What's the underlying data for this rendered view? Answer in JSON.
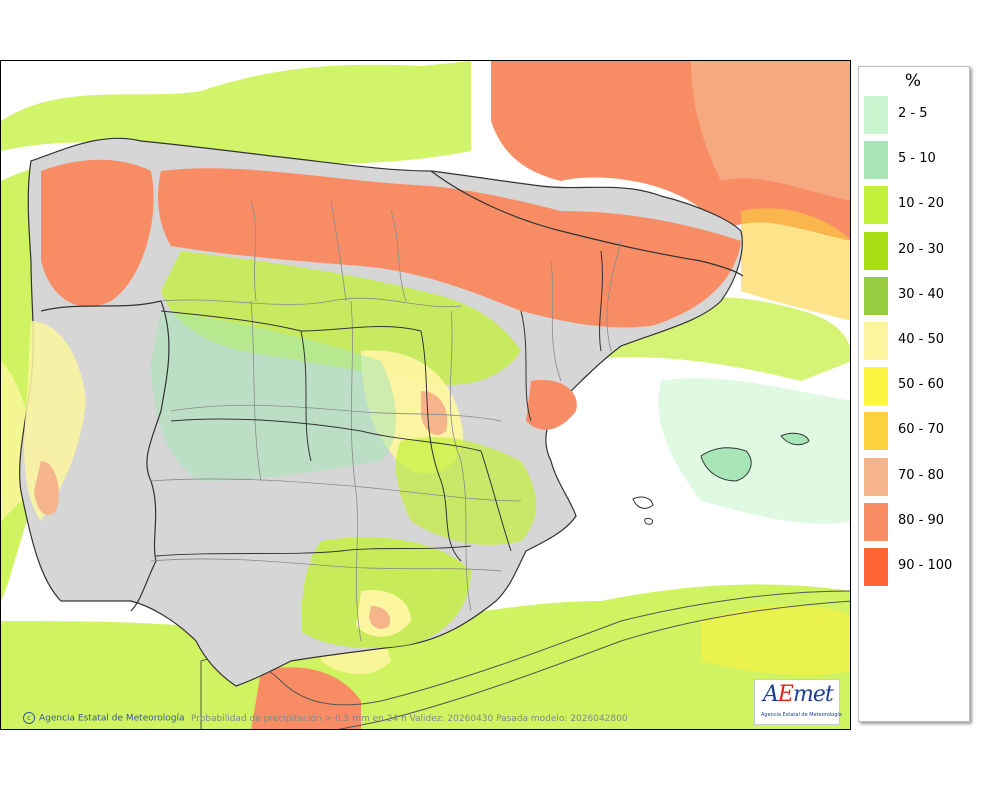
{
  "legend": {
    "title": "%",
    "items": [
      {
        "label": "2 - 5",
        "color": "#c9f5cf"
      },
      {
        "label": "5 - 10",
        "color": "#a8e6b8"
      },
      {
        "label": "10 - 20",
        "color": "#c3f03a"
      },
      {
        "label": "20 - 30",
        "color": "#a8df14"
      },
      {
        "label": "30 - 40",
        "color": "#98cc40"
      },
      {
        "label": "40 - 50",
        "color": "#fdf6a0"
      },
      {
        "label": "50 - 60",
        "color": "#fcf440"
      },
      {
        "label": "60 - 70",
        "color": "#fcd23c"
      },
      {
        "label": "70 - 80",
        "color": "#f5b48a"
      },
      {
        "label": "80 - 90",
        "color": "#f88c64"
      },
      {
        "label": "90 - 100",
        "color": "#ff6534"
      }
    ]
  },
  "footer": {
    "credit": "Agencia Estatal de Meteorología",
    "caption": "Probabilidad de precipitación > 0.5 mm en 24 h Validez: 20260430 Pasada modelo: 2026042800"
  },
  "logo": {
    "word_pre": "A",
    "word_mark": "E",
    "word_post": "met",
    "subtitle": "Agencia Estatal de Meteorología"
  },
  "colors": {
    "land_gray": "#d6d6d6",
    "border_line": "#333333",
    "province_line": "#8a8a8a",
    "sea": "#ffffff"
  }
}
